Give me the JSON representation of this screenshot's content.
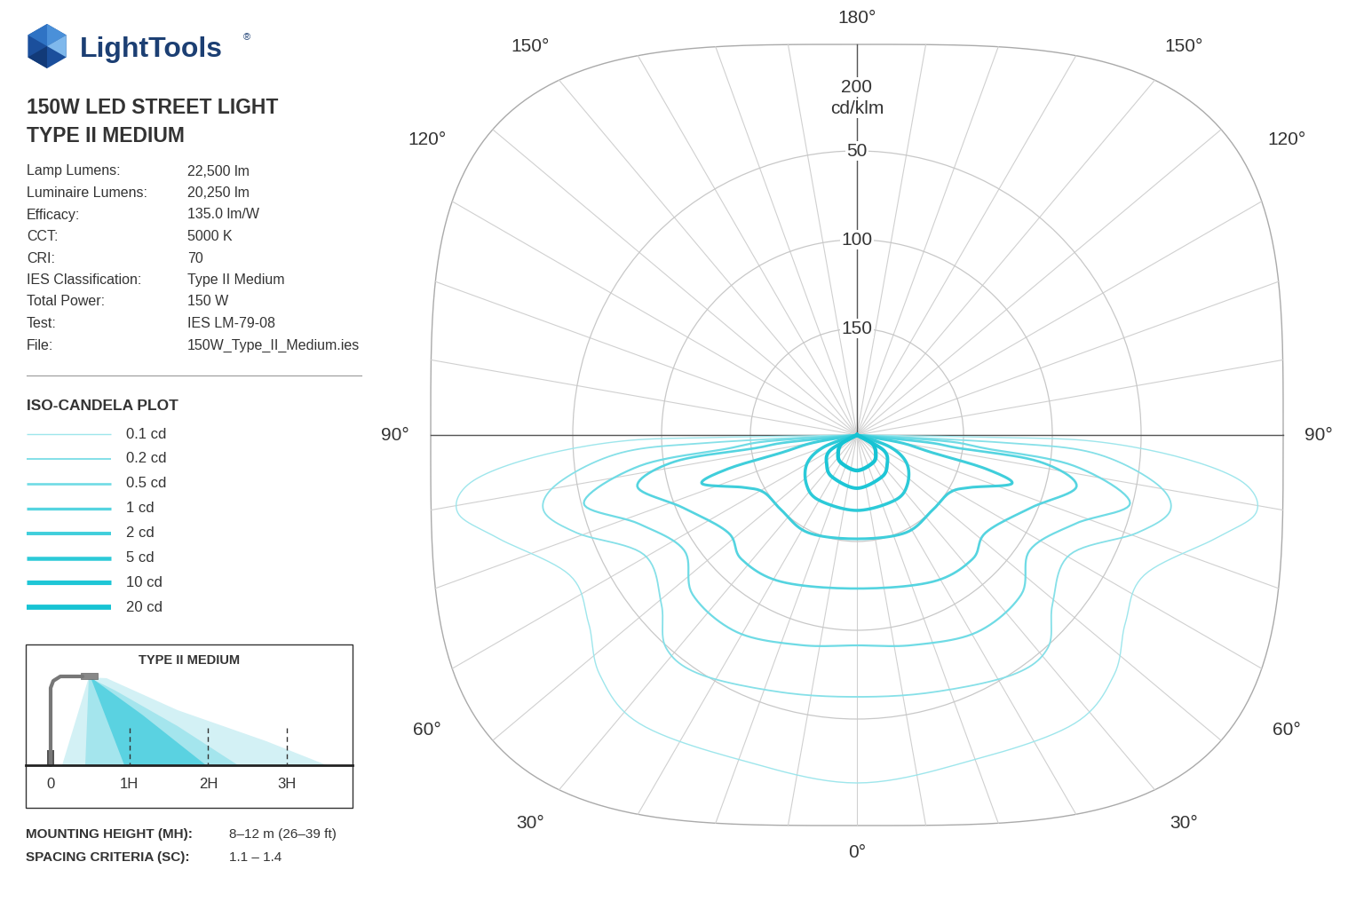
{
  "header": {
    "logo": "LightTools",
    "logo_mark": "®",
    "title": [
      "150W LED STREET LIGHT",
      "TYPE II MEDIUM"
    ]
  },
  "specs": [
    [
      "Lamp Lumens:",
      "22,500 lm"
    ],
    [
      "Luminaire Lumens:",
      "20,250 lm"
    ],
    [
      "Efficacy:",
      "135.0 lm/W"
    ],
    [
      "CCT:",
      "5000 K"
    ],
    [
      "CRI:",
      "70"
    ],
    [
      "IES Classification:",
      "Type II Medium"
    ],
    [
      "Total Power:",
      "150 W"
    ],
    [
      "Test:",
      "IES LM-79-08"
    ],
    [
      "File:",
      "150W_Type_II_Medium.ies"
    ]
  ],
  "legend_title": "ISO-CANDELA PLOT",
  "inset": {
    "title": "TYPE II MEDIUM",
    "labels": [
      "0",
      "1H",
      "2H",
      "3H"
    ]
  },
  "footer": [
    [
      "MOUNTING HEIGHT (MH):",
      "8–12 m (26–39 ft)"
    ],
    [
      "SPACING CRITERIA (SC):",
      "1.1 – 1.4"
    ]
  ],
  "chart_data": {
    "type": "polar_contour",
    "rlim": [
      210,
      -25
    ],
    "rticks": [
      50,
      100,
      150
    ],
    "radial_title": [
      "200",
      "cd/klm"
    ],
    "thetaticks": [
      {
        "value": -150,
        "label": "150°"
      },
      {
        "value": -120,
        "label": "120°"
      },
      {
        "value": -90,
        "label": "90°"
      },
      {
        "value": -60,
        "label": "60°"
      },
      {
        "value": -30,
        "label": "30°"
      },
      {
        "value": 0,
        "label": "0°"
      },
      {
        "value": 30,
        "label": "30°"
      },
      {
        "value": 60,
        "label": "60°"
      },
      {
        "value": 90,
        "label": "90°"
      },
      {
        "value": 120,
        "label": "120°"
      },
      {
        "value": 150,
        "label": "150°"
      },
      {
        "value": 180,
        "label": "180°"
      }
    ],
    "grid": true,
    "series": [
      {
        "name": "0.1 cd",
        "color": "#9ee6ec",
        "angles": [
          -90,
          -89,
          -88.5,
          -86,
          -83,
          -79,
          -74,
          -64,
          -55,
          -47,
          -37,
          -20,
          0,
          20,
          37,
          47,
          55,
          64,
          74,
          79,
          83,
          86,
          88.5,
          89,
          90
        ],
        "values": [
          210,
          135,
          77.5,
          27,
          -9,
          -19,
          -0.5,
          30,
          25.5,
          12,
          6.5,
          15.5,
          14,
          15.5,
          6.5,
          12,
          25.5,
          30,
          -0.5,
          -19,
          -9,
          27,
          77.5,
          135,
          210
        ]
      },
      {
        "name": "0.2 cd",
        "color": "#86e0e8",
        "angles": [
          -90,
          -87,
          -85.7,
          -81,
          -76.5,
          -70.7,
          -60.6,
          -49.2,
          -41.9,
          -33,
          -16.3,
          0,
          16.3,
          33,
          41.9,
          49.2,
          60.6,
          70.7,
          76.5,
          81,
          85.7,
          87,
          90
        ],
        "values": [
          210,
          127.5,
          77,
          40.5,
          28.5,
          43,
          72.5,
          64.5,
          49,
          49,
          59,
          62.5,
          59,
          49,
          49,
          64.5,
          72.5,
          43,
          28.5,
          40.5,
          77,
          127.5,
          210
        ]
      },
      {
        "name": "0.5 cd",
        "color": "#6fdbe5",
        "angles": [
          -90,
          -86,
          -84,
          -81.9,
          -76,
          -67.8,
          -56.3,
          -45.8,
          -31.3,
          -15,
          0,
          15,
          31.3,
          45.8,
          56.3,
          67.8,
          76,
          81.9,
          84,
          86,
          90
        ],
        "values": [
          210,
          160,
          137,
          86.5,
          51.5,
          77.5,
          93,
          81,
          80,
          87.5,
          91.5,
          87.5,
          80,
          81,
          93,
          77.5,
          51.5,
          86.5,
          137,
          160,
          210
        ]
      },
      {
        "name": "1 cd",
        "color": "#55d4e0",
        "angles": [
          -90,
          -84,
          -82.6,
          -81.7,
          -76.8,
          -67.2,
          -52.8,
          -42.9,
          -27.3,
          0,
          27.3,
          42.9,
          52.8,
          67.2,
          76.8,
          81.7,
          82.6,
          84,
          90
        ],
        "values": [
          210,
          170,
          152,
          106.5,
          83,
          104,
          119,
          114.5,
          117,
          123.5,
          117,
          114.5,
          119,
          104,
          83,
          106.5,
          152,
          170,
          210
        ]
      },
      {
        "name": "2 cd",
        "color": "#3fcedb",
        "angles": [
          -90,
          -80,
          -76.8,
          -75.3,
          -72.6,
          -65,
          -58.2,
          -45,
          -26.6,
          0,
          26.6,
          45,
          58.2,
          65,
          72.6,
          75.3,
          76.8,
          80,
          90
        ],
        "values": [
          210,
          185,
          166.5,
          135,
          118.5,
          140,
          148.5,
          150,
          148.5,
          151.5,
          148.5,
          150,
          148.5,
          140,
          118.5,
          135,
          166.5,
          185,
          210
        ]
      },
      {
        "name": "5 cd",
        "color": "#2ccad8",
        "angles": [
          -90,
          -70,
          -60,
          -45,
          -30,
          0,
          30,
          45,
          60,
          70,
          90
        ],
        "values": [
          210,
          190,
          177.5,
          170,
          167.5,
          167.5,
          167.5,
          170,
          177.5,
          190,
          210
        ]
      },
      {
        "name": "10 cd",
        "color": "#1ec6d6",
        "angles": [
          -90,
          -60,
          -45,
          -30,
          0,
          30,
          45,
          60,
          90
        ],
        "values": [
          210,
          192.5,
          186,
          182.5,
          180,
          182.5,
          186,
          192.5,
          210
        ]
      },
      {
        "name": "20 cd",
        "color": "#16c3d3",
        "angles": [
          -90,
          -60,
          -45,
          -30,
          0,
          30,
          45,
          60,
          90
        ],
        "values": [
          210,
          200,
          195,
          192,
          190,
          192,
          195,
          200,
          210
        ]
      }
    ]
  }
}
